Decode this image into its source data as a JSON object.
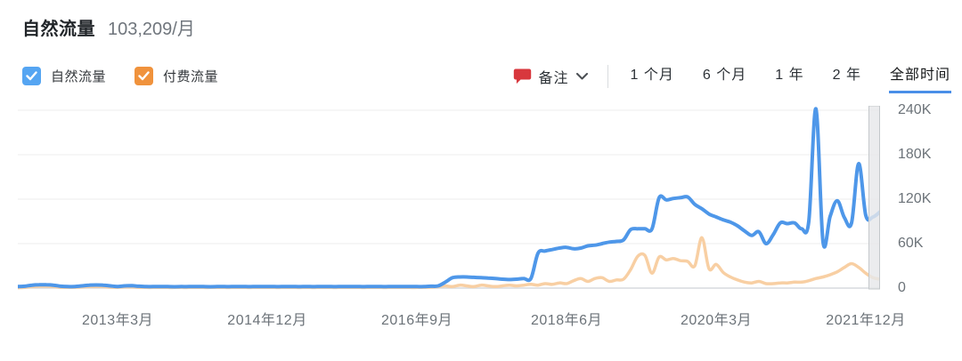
{
  "header": {
    "title": "自然流量",
    "value": "103,209/月"
  },
  "legend": [
    {
      "key": "organic",
      "label": "自然流量",
      "color": "#55a5f2",
      "checked": true
    },
    {
      "key": "paid",
      "label": "付费流量",
      "color": "#f0923c",
      "checked": true
    }
  ],
  "toolbar": {
    "notes_label": "备注",
    "note_icon_color": "#d8373d",
    "ranges": [
      {
        "key": "1m",
        "label": "1 个月",
        "active": false
      },
      {
        "key": "6m",
        "label": "6 个月",
        "active": false
      },
      {
        "key": "1y",
        "label": "1 年",
        "active": false
      },
      {
        "key": "2y",
        "label": "2 年",
        "active": false
      },
      {
        "key": "all",
        "label": "全部时间",
        "active": true
      }
    ],
    "active_underline_color": "#4a8fe8"
  },
  "chart_data": {
    "type": "line",
    "title": "自然流量 103,209/月",
    "xlabel": "",
    "ylabel": "",
    "unit": "K (thousand visits/month)",
    "grid": "horizontal",
    "legend_position": "top-left",
    "ylim_k": [
      0,
      240
    ],
    "y_ticks": [
      {
        "label": "240K",
        "value_k": 240
      },
      {
        "label": "180K",
        "value_k": 180
      },
      {
        "label": "120K",
        "value_k": 120
      },
      {
        "label": "60K",
        "value_k": 60
      },
      {
        "label": "0",
        "value_k": 0
      }
    ],
    "x_start_month": "2012-01",
    "x_end_month": "2022-02",
    "x_ticks": [
      {
        "label": "2013年3月",
        "month_index": 14
      },
      {
        "label": "2014年12月",
        "month_index": 35
      },
      {
        "label": "2016年9月",
        "month_index": 56
      },
      {
        "label": "2018年6月",
        "month_index": 77
      },
      {
        "label": "2020年3月",
        "month_index": 98
      },
      {
        "label": "2021年12月",
        "month_index": 119
      }
    ],
    "series": [
      {
        "name": "付费流量",
        "color": "#f8cfa3",
        "stroke_width": 3.5,
        "values_k": [
          0.5,
          1,
          2,
          2.5,
          2.5,
          2,
          1,
          0.8,
          1,
          1.5,
          2,
          2.2,
          2,
          1.2,
          1,
          1.5,
          1.5,
          1,
          0.8,
          0.8,
          1,
          0.8,
          0.8,
          0.8,
          0.8,
          1,
          0.8,
          0.8,
          0.8,
          0.8,
          0.8,
          1,
          0.8,
          0.8,
          0.8,
          0.8,
          0.8,
          0.8,
          1,
          0.8,
          0.8,
          0.8,
          0.8,
          1,
          0.8,
          0.8,
          0.8,
          0.8,
          0.8,
          0.8,
          1,
          0.8,
          0.8,
          0.8,
          0.8,
          0.8,
          0.8,
          1,
          1.2,
          2,
          3,
          2,
          4,
          3,
          2,
          4,
          3,
          2,
          3,
          4,
          3,
          4,
          5,
          4,
          6,
          5,
          7,
          6,
          10,
          13,
          9,
          13,
          14,
          9,
          11,
          12,
          25,
          43,
          44,
          20,
          42,
          38,
          40,
          37,
          36,
          30,
          68,
          26,
          32,
          21,
          15,
          11,
          8,
          7,
          9,
          6,
          6,
          7,
          7,
          8,
          8,
          10,
          13,
          15,
          18,
          22,
          28,
          33,
          28,
          20,
          14,
          12
        ]
      },
      {
        "name": "自然流量",
        "color": "#4e97e9",
        "stroke_width": 4,
        "values_k": [
          2,
          2.5,
          4,
          4.5,
          4.5,
          4,
          2.5,
          2,
          2.2,
          3,
          4,
          4.2,
          4,
          3,
          2.2,
          3,
          3.2,
          2.5,
          2,
          2,
          2.2,
          2,
          1.8,
          2,
          2,
          2.2,
          2,
          1.8,
          2,
          2,
          2,
          2.2,
          2,
          2,
          2,
          2,
          2,
          2,
          2.2,
          2,
          2,
          2,
          2,
          2.2,
          2,
          2,
          2,
          2,
          2,
          2,
          2.2,
          2,
          2,
          2,
          2,
          2,
          2,
          2,
          2.5,
          3,
          8,
          14,
          15,
          15,
          14.5,
          14,
          13.5,
          13,
          12,
          11.5,
          12,
          13,
          13,
          47,
          50,
          52,
          54,
          55,
          53,
          54,
          57,
          58,
          60,
          62,
          63,
          65,
          79,
          80,
          80,
          80,
          122,
          119,
          121,
          122,
          123,
          113,
          107,
          100,
          96,
          92,
          89,
          84,
          77,
          71,
          76,
          60,
          72,
          88,
          87,
          88,
          80,
          90,
          242,
          62,
          97,
          118,
          95,
          88,
          168,
          98,
          96,
          103
        ]
      }
    ],
    "right_handle": {
      "present": true,
      "fill": "#e6e8ea",
      "border": "#c4c8cb"
    }
  }
}
